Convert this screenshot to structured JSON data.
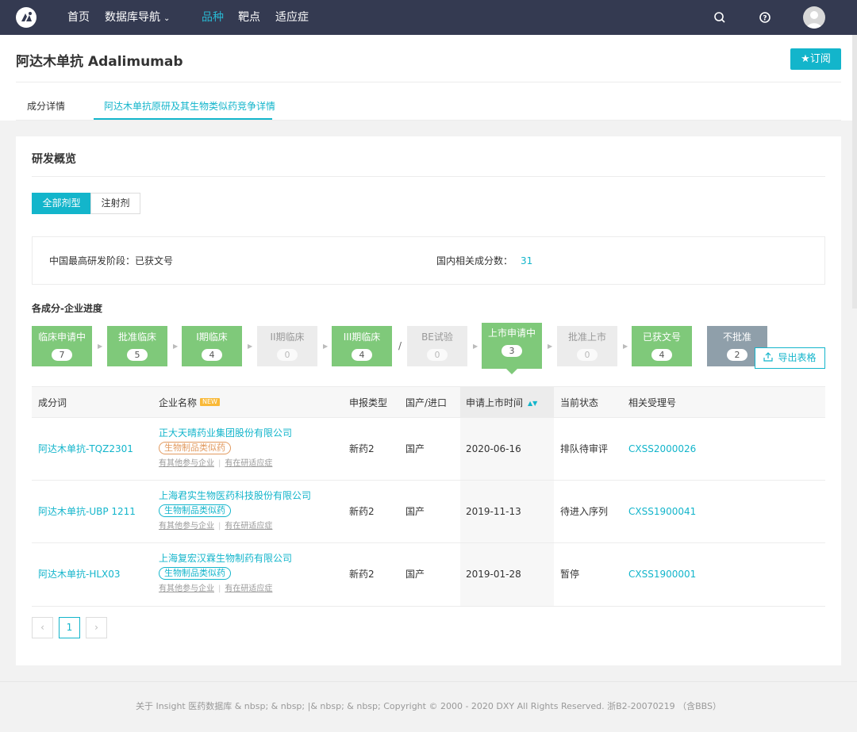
{
  "nav": {
    "logo": "logo-icon",
    "items": [
      {
        "label": "首页"
      },
      {
        "label": "数据库导航"
      },
      {
        "label": "品种"
      },
      {
        "label": "靶点"
      },
      {
        "label": "适应症"
      }
    ],
    "active_index": 2,
    "accent_color": "#29b6d0",
    "bar_color": "#343a51"
  },
  "header": {
    "title": "阿达木单抗 Adalimumab",
    "subscribe_label": "★订阅"
  },
  "tabs": [
    {
      "label": "成分详情",
      "active": false
    },
    {
      "label": "阿达木单抗原研及其生物类似药竞争详情",
      "active": true
    }
  ],
  "overview": {
    "title": "研发概览",
    "filters": [
      {
        "label": "全部剂型",
        "active": true
      },
      {
        "label": "注射剂",
        "active": false
      }
    ],
    "highest_stage_label": "中国最高研发阶段：已获文号",
    "domestic_count_label": "国内相关成分数：",
    "domestic_count_value": "31"
  },
  "progress": {
    "title": "各成分-企业进度",
    "stages": [
      {
        "label": "临床申请中",
        "count": "7",
        "state": "green"
      },
      {
        "label": "批准临床",
        "count": "5",
        "state": "green"
      },
      {
        "label": "I期临床",
        "count": "4",
        "state": "green"
      },
      {
        "label": "II期临床",
        "count": "0",
        "state": "grey"
      },
      {
        "label": "III期临床",
        "count": "4",
        "state": "green"
      },
      {
        "label": "BE试验",
        "count": "0",
        "state": "grey"
      },
      {
        "label": "上市申请中",
        "count": "3",
        "state": "green",
        "selected": true
      },
      {
        "label": "批准上市",
        "count": "0",
        "state": "grey"
      },
      {
        "label": "已获文号",
        "count": "4",
        "state": "green"
      },
      {
        "label": "不批准",
        "count": "2",
        "state": "slate"
      }
    ],
    "slash": "/",
    "export_label": "导出表格"
  },
  "table": {
    "headers": {
      "ingredient": "成分词",
      "company": "企业名称",
      "new_badge": "NEW",
      "type": "申报类型",
      "origin": "国产/进口",
      "date": "申请上市时间",
      "status": "当前状态",
      "acceptance": "相关受理号"
    },
    "rows": [
      {
        "ingredient": "阿达木单抗-TQZ2301",
        "company": "正大天晴药业集团股份有限公司",
        "tag": "生物制品类似药",
        "tag_color": "orange",
        "link1": "有其他参与企业",
        "link2": "有在研适应症",
        "type": "新药2",
        "origin": "国产",
        "date": "2020-06-16",
        "status": "排队待审评",
        "acceptance": "CXSS2000026"
      },
      {
        "ingredient": "阿达木单抗-UBP 1211",
        "company": "上海君实生物医药科技股份有限公司",
        "tag": "生物制品类似药",
        "tag_color": "teal",
        "link1": "有其他参与企业",
        "link2": "有在研适应症",
        "type": "新药2",
        "origin": "国产",
        "date": "2019-11-13",
        "status": "待进入序列",
        "acceptance": "CXSS1900041"
      },
      {
        "ingredient": "阿达木单抗-HLX03",
        "company": "上海复宏汉霖生物制药有限公司",
        "tag": "生物制品类似药",
        "tag_color": "teal",
        "link1": "有其他参与企业",
        "link2": "有在研适应症",
        "type": "新药2",
        "origin": "国产",
        "date": "2019-01-28",
        "status": "暂停",
        "acceptance": "CXSS1900001"
      }
    ]
  },
  "pagination": {
    "prev": "‹",
    "current": "1",
    "next": "›"
  },
  "footer": {
    "text": "关于 Insight 医药数据库 & nbsp; & nbsp; |& nbsp; & nbsp; Copyright © 2000 - 2020 DXY All Rights Reserved. 浙B2-20070219 （含BBS）"
  }
}
